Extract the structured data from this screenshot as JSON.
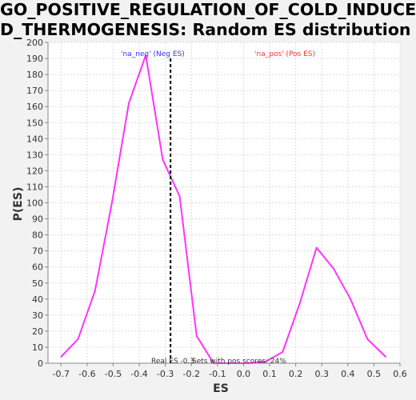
{
  "chart_data": {
    "type": "line",
    "title_lines": [
      "GO_POSITIVE_REGULATION_OF_COLD_INDUCE",
      "D_THERMOGENESIS: Random ES distribution"
    ],
    "xlabel": "ES",
    "ylabel": "P(ES)",
    "xlim": [
      -0.75,
      0.6
    ],
    "ylim": [
      0,
      200
    ],
    "x_ticks": [
      "-0.7",
      "-0.6",
      "-0.5",
      "-0.4",
      "-0.3",
      "-0.2",
      "-0.1",
      "0.0",
      "0.1",
      "0.2",
      "0.3",
      "0.4",
      "0.5",
      "0.6"
    ],
    "x_tick_values": [
      -0.7,
      -0.6,
      -0.5,
      -0.4,
      -0.3,
      -0.2,
      -0.1,
      0.0,
      0.1,
      0.2,
      0.3,
      0.4,
      0.5,
      0.6
    ],
    "y_ticks": [
      "0",
      "10",
      "20",
      "30",
      "40",
      "50",
      "60",
      "70",
      "80",
      "90",
      "100",
      "110",
      "120",
      "130",
      "140",
      "150",
      "160",
      "170",
      "180",
      "190",
      "200"
    ],
    "y_tick_values": [
      0,
      10,
      20,
      30,
      40,
      50,
      60,
      70,
      80,
      90,
      100,
      110,
      120,
      130,
      140,
      150,
      160,
      170,
      180,
      190,
      200
    ],
    "grid": true,
    "series": [
      {
        "color": "#ff33ff",
        "x": [
          -0.7,
          -0.635,
          -0.57,
          -0.505,
          -0.44,
          -0.375,
          -0.31,
          -0.245,
          -0.18,
          -0.115,
          -0.05,
          0.02,
          0.085,
          0.15,
          0.215,
          0.28,
          0.345,
          0.41,
          0.475,
          0.545
        ],
        "y": [
          4,
          15,
          45,
          100,
          162,
          192,
          127,
          104,
          17,
          0,
          0,
          0,
          1,
          7,
          37,
          72,
          59,
          40,
          15,
          4
        ]
      }
    ],
    "real_es_x": -0.28,
    "annotations": {
      "neg_label": "'na_neg' (Neg ES)",
      "pos_label": "'na_pos' (Pos ES)",
      "real_es": "Real ES -0.3",
      "sets_pos": "Sets with pos scores: 24%"
    },
    "colors": {
      "line": "#ff33ff",
      "neg_label": "#3333ff",
      "pos_label": "#ff3333",
      "real_es_line": "#000000",
      "plot_bg": "#ffffff",
      "page_bg": "#f2f2f2"
    }
  }
}
